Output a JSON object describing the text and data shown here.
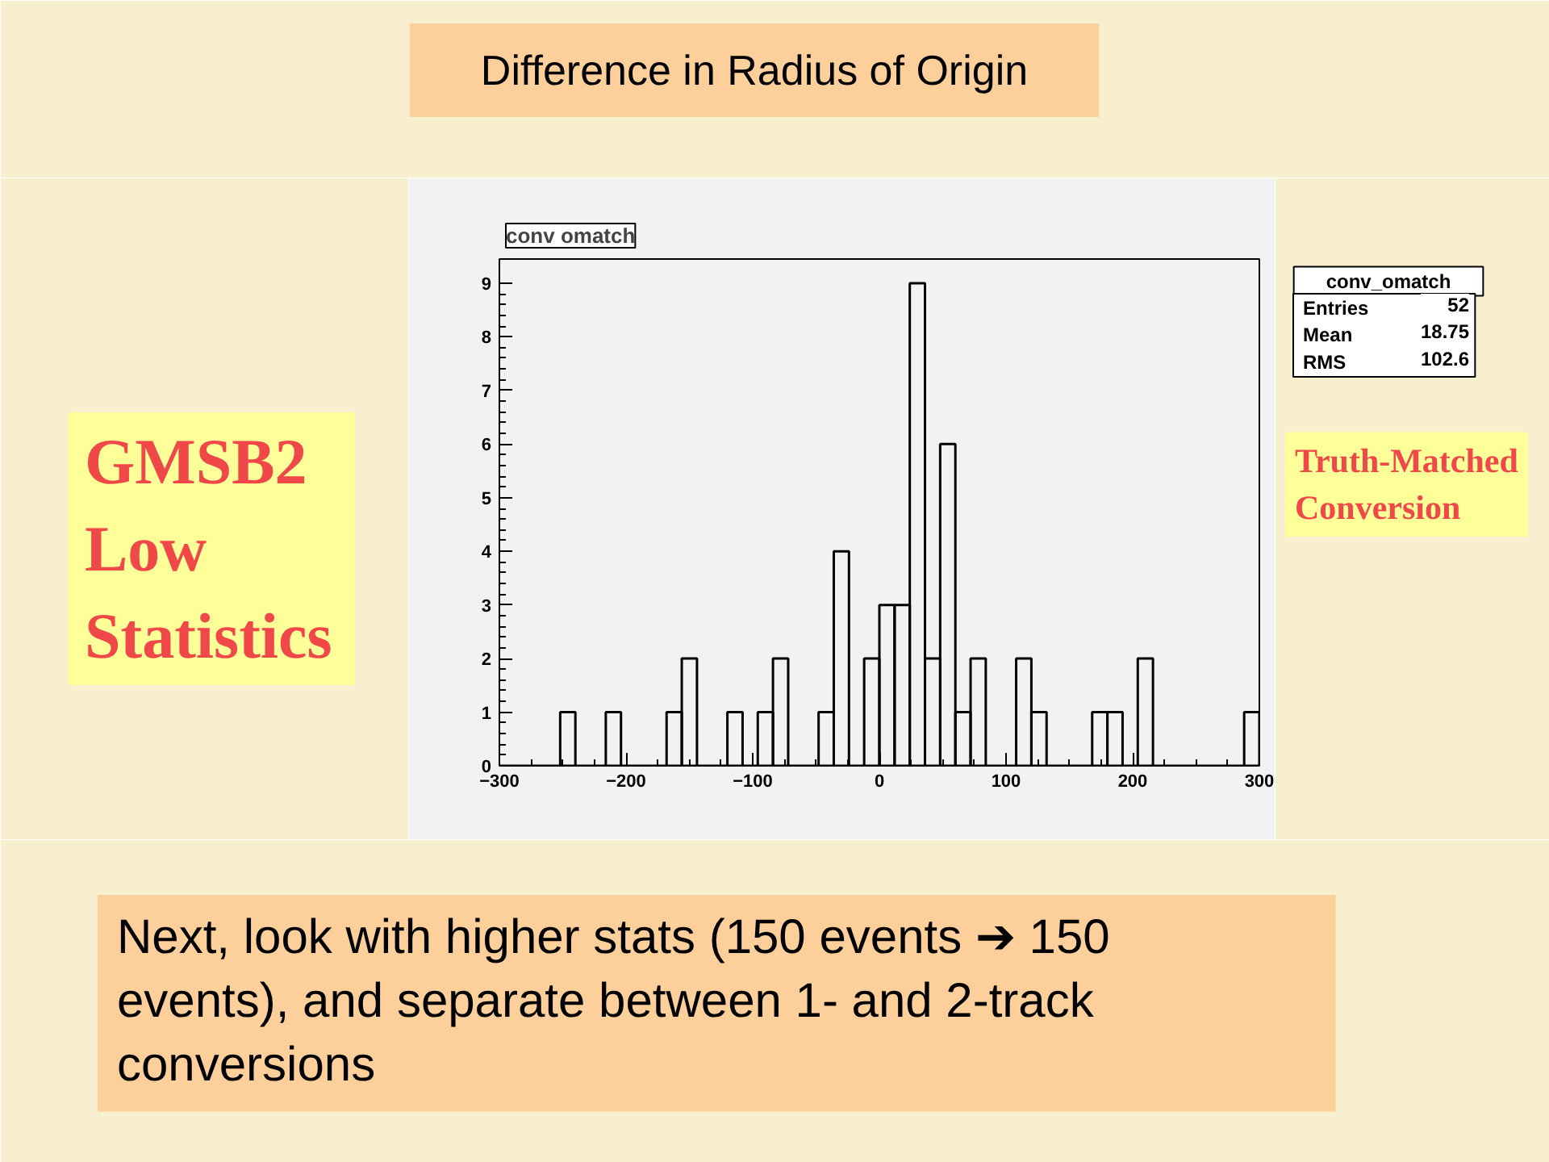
{
  "chart_data": {
    "type": "histogram",
    "title": "Difference in Radius of Origin",
    "subtitle": "conv omatch",
    "bins": [
      -300,
      -288,
      -276,
      -264,
      -252,
      -240,
      -228,
      -216,
      -204,
      -192,
      -180,
      -168,
      -156,
      -144,
      -132,
      -120,
      -108,
      -96,
      -84,
      -72,
      -60,
      -48,
      -36,
      -24,
      -12,
      0,
      12,
      24,
      36,
      48,
      60,
      72,
      84,
      96,
      108,
      120,
      132,
      144,
      156,
      168,
      180,
      192,
      204,
      216,
      228,
      240,
      252,
      264,
      276,
      288,
      300
    ],
    "values": [
      0,
      0,
      0,
      0,
      1,
      0,
      0,
      1,
      0,
      0,
      0,
      1,
      2,
      0,
      0,
      1,
      0,
      1,
      2,
      0,
      0,
      1,
      4,
      0,
      2,
      3,
      3,
      9,
      2,
      6,
      1,
      2,
      0,
      0,
      2,
      1,
      0,
      0,
      0,
      1,
      1,
      0,
      2,
      0,
      0,
      0,
      0,
      0,
      0,
      1
    ],
    "color": "#000000",
    "xlim": [
      -300,
      300
    ],
    "xticks": [
      -300,
      -200,
      -100,
      0,
      100,
      200,
      300
    ],
    "ylim": [
      0,
      9.45
    ],
    "yticks": [
      0,
      1,
      2,
      3,
      4,
      5,
      6,
      7,
      8,
      9
    ],
    "grid": false,
    "annotations": [
      "conv_omatch",
      "Entries 52",
      "Mean 18.75",
      "RMS 102.6",
      "GMSB2 Low Statistics",
      "Truth-Matched Conversion",
      "Next, look with higher stats (150 events ➔ 150 events), and separate between 1- and 2-track conversions"
    ]
  }
}
